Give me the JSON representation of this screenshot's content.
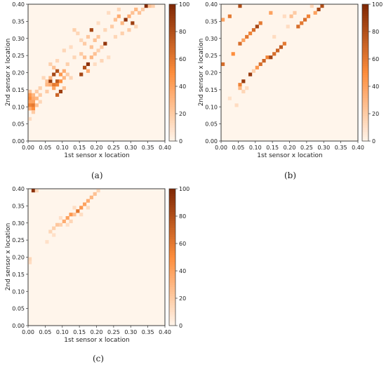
{
  "colormap": {
    "low": "#fff5eb",
    "mid": "#fd8d3c",
    "high": "#7f2704"
  },
  "chart_data": [
    {
      "type": "heatmap",
      "caption": "(a)",
      "xlabel": "1st sensor x location",
      "ylabel": "2nd sensor x location",
      "xlim": [
        0,
        0.4
      ],
      "ylim": [
        0,
        0.4
      ],
      "xticks": [
        "0.00",
        "0.05",
        "0.10",
        "0.15",
        "0.20",
        "0.25",
        "0.30",
        "0.35",
        "0.40"
      ],
      "yticks": [
        "0.00",
        "0.05",
        "0.10",
        "0.15",
        "0.20",
        "0.25",
        "0.30",
        "0.35",
        "0.40"
      ],
      "colorbar": {
        "min": 0,
        "max": 100,
        "ticks": [
          "0",
          "20",
          "40",
          "60",
          "80",
          "100"
        ]
      },
      "bin_size": 0.01,
      "cells": [
        {
          "x": 0.0,
          "y": 0.14,
          "v": 25
        },
        {
          "x": 0.0,
          "y": 0.13,
          "v": 45
        },
        {
          "x": 0.0,
          "y": 0.12,
          "v": 50
        },
        {
          "x": 0.0,
          "y": 0.11,
          "v": 40
        },
        {
          "x": 0.0,
          "y": 0.1,
          "v": 55
        },
        {
          "x": 0.0,
          "y": 0.09,
          "v": 35
        },
        {
          "x": 0.01,
          "y": 0.13,
          "v": 30
        },
        {
          "x": 0.01,
          "y": 0.12,
          "v": 35
        },
        {
          "x": 0.01,
          "y": 0.11,
          "v": 40
        },
        {
          "x": 0.01,
          "y": 0.1,
          "v": 60
        },
        {
          "x": 0.01,
          "y": 0.09,
          "v": 50
        },
        {
          "x": 0.01,
          "y": 0.08,
          "v": 20
        },
        {
          "x": 0.02,
          "y": 0.14,
          "v": 20
        },
        {
          "x": 0.02,
          "y": 0.12,
          "v": 30
        },
        {
          "x": 0.02,
          "y": 0.1,
          "v": 25
        },
        {
          "x": 0.03,
          "y": 0.13,
          "v": 20
        },
        {
          "x": 0.03,
          "y": 0.11,
          "v": 15
        },
        {
          "x": 0.0,
          "y": 0.06,
          "v": 12
        },
        {
          "x": 0.05,
          "y": 0.17,
          "v": 25
        },
        {
          "x": 0.05,
          "y": 0.16,
          "v": 30
        },
        {
          "x": 0.05,
          "y": 0.14,
          "v": 20
        },
        {
          "x": 0.06,
          "y": 0.17,
          "v": 90
        },
        {
          "x": 0.06,
          "y": 0.18,
          "v": 30
        },
        {
          "x": 0.06,
          "y": 0.16,
          "v": 35
        },
        {
          "x": 0.07,
          "y": 0.19,
          "v": 85
        },
        {
          "x": 0.07,
          "y": 0.16,
          "v": 60
        },
        {
          "x": 0.07,
          "y": 0.15,
          "v": 40
        },
        {
          "x": 0.08,
          "y": 0.2,
          "v": 80
        },
        {
          "x": 0.08,
          "y": 0.17,
          "v": 75
        },
        {
          "x": 0.08,
          "y": 0.16,
          "v": 55
        },
        {
          "x": 0.08,
          "y": 0.13,
          "v": 70
        },
        {
          "x": 0.09,
          "y": 0.19,
          "v": 45
        },
        {
          "x": 0.09,
          "y": 0.17,
          "v": 50
        },
        {
          "x": 0.09,
          "y": 0.14,
          "v": 88
        },
        {
          "x": 0.1,
          "y": 0.2,
          "v": 35
        },
        {
          "x": 0.1,
          "y": 0.18,
          "v": 30
        },
        {
          "x": 0.1,
          "y": 0.15,
          "v": 25
        },
        {
          "x": 0.11,
          "y": 0.19,
          "v": 20
        },
        {
          "x": 0.11,
          "y": 0.22,
          "v": 18
        },
        {
          "x": 0.07,
          "y": 0.21,
          "v": 25
        },
        {
          "x": 0.06,
          "y": 0.22,
          "v": 18
        },
        {
          "x": 0.08,
          "y": 0.23,
          "v": 15
        },
        {
          "x": 0.04,
          "y": 0.18,
          "v": 15
        },
        {
          "x": 0.03,
          "y": 0.15,
          "v": 18
        },
        {
          "x": 0.12,
          "y": 0.18,
          "v": 15
        },
        {
          "x": 0.1,
          "y": 0.26,
          "v": 15
        },
        {
          "x": 0.12,
          "y": 0.27,
          "v": 12
        },
        {
          "x": 0.13,
          "y": 0.24,
          "v": 15
        },
        {
          "x": 0.15,
          "y": 0.19,
          "v": 85
        },
        {
          "x": 0.16,
          "y": 0.21,
          "v": 80
        },
        {
          "x": 0.17,
          "y": 0.22,
          "v": 95
        },
        {
          "x": 0.17,
          "y": 0.2,
          "v": 35
        },
        {
          "x": 0.16,
          "y": 0.24,
          "v": 25
        },
        {
          "x": 0.15,
          "y": 0.25,
          "v": 20
        },
        {
          "x": 0.18,
          "y": 0.24,
          "v": 30
        },
        {
          "x": 0.19,
          "y": 0.25,
          "v": 25
        },
        {
          "x": 0.18,
          "y": 0.27,
          "v": 25
        },
        {
          "x": 0.16,
          "y": 0.28,
          "v": 20
        },
        {
          "x": 0.17,
          "y": 0.3,
          "v": 22
        },
        {
          "x": 0.18,
          "y": 0.32,
          "v": 85
        },
        {
          "x": 0.19,
          "y": 0.29,
          "v": 25
        },
        {
          "x": 0.2,
          "y": 0.3,
          "v": 22
        },
        {
          "x": 0.21,
          "y": 0.27,
          "v": 20
        },
        {
          "x": 0.22,
          "y": 0.28,
          "v": 92
        },
        {
          "x": 0.2,
          "y": 0.26,
          "v": 18
        },
        {
          "x": 0.14,
          "y": 0.31,
          "v": 15
        },
        {
          "x": 0.13,
          "y": 0.32,
          "v": 18
        },
        {
          "x": 0.15,
          "y": 0.29,
          "v": 15
        },
        {
          "x": 0.19,
          "y": 0.22,
          "v": 12
        },
        {
          "x": 0.21,
          "y": 0.23,
          "v": 15
        },
        {
          "x": 0.23,
          "y": 0.24,
          "v": 12
        },
        {
          "x": 0.22,
          "y": 0.32,
          "v": 15
        },
        {
          "x": 0.24,
          "y": 0.33,
          "v": 20
        },
        {
          "x": 0.25,
          "y": 0.35,
          "v": 25
        },
        {
          "x": 0.26,
          "y": 0.36,
          "v": 35
        },
        {
          "x": 0.27,
          "y": 0.34,
          "v": 30
        },
        {
          "x": 0.28,
          "y": 0.35,
          "v": 95
        },
        {
          "x": 0.29,
          "y": 0.36,
          "v": 35
        },
        {
          "x": 0.3,
          "y": 0.34,
          "v": 88
        },
        {
          "x": 0.3,
          "y": 0.37,
          "v": 25
        },
        {
          "x": 0.31,
          "y": 0.38,
          "v": 30
        },
        {
          "x": 0.32,
          "y": 0.37,
          "v": 25
        },
        {
          "x": 0.33,
          "y": 0.38,
          "v": 20
        },
        {
          "x": 0.34,
          "y": 0.39,
          "v": 98
        },
        {
          "x": 0.35,
          "y": 0.39,
          "v": 25
        },
        {
          "x": 0.36,
          "y": 0.39,
          "v": 18
        },
        {
          "x": 0.27,
          "y": 0.31,
          "v": 18
        },
        {
          "x": 0.25,
          "y": 0.3,
          "v": 15
        },
        {
          "x": 0.29,
          "y": 0.32,
          "v": 20
        },
        {
          "x": 0.31,
          "y": 0.33,
          "v": 15
        },
        {
          "x": 0.26,
          "y": 0.38,
          "v": 15
        },
        {
          "x": 0.23,
          "y": 0.37,
          "v": 12
        },
        {
          "x": 0.2,
          "y": 0.34,
          "v": 12
        }
      ]
    },
    {
      "type": "heatmap",
      "caption": "(b)",
      "xlabel": "1st sensor x location",
      "ylabel": "2nd sensor x location",
      "xlim": [
        0,
        0.4
      ],
      "ylim": [
        0,
        0.4
      ],
      "xticks": [
        "0.00",
        "0.05",
        "0.10",
        "0.15",
        "0.20",
        "0.25",
        "0.30",
        "0.35",
        "0.40"
      ],
      "yticks": [
        "0.00",
        "0.05",
        "0.10",
        "0.15",
        "0.20",
        "0.25",
        "0.30",
        "0.35",
        "0.40"
      ],
      "colorbar": {
        "min": 0,
        "max": 100,
        "ticks": [
          "0",
          "20",
          "40",
          "60",
          "80",
          "100"
        ]
      },
      "bin_size": 0.01,
      "cells": [
        {
          "x": 0.0,
          "y": 0.22,
          "v": 65
        },
        {
          "x": 0.0,
          "y": 0.35,
          "v": 40
        },
        {
          "x": 0.02,
          "y": 0.36,
          "v": 60
        },
        {
          "x": 0.03,
          "y": 0.25,
          "v": 50
        },
        {
          "x": 0.05,
          "y": 0.39,
          "v": 80
        },
        {
          "x": 0.05,
          "y": 0.28,
          "v": 65
        },
        {
          "x": 0.06,
          "y": 0.29,
          "v": 40
        },
        {
          "x": 0.06,
          "y": 0.17,
          "v": 90
        },
        {
          "x": 0.05,
          "y": 0.16,
          "v": 55
        },
        {
          "x": 0.05,
          "y": 0.15,
          "v": 30
        },
        {
          "x": 0.07,
          "y": 0.3,
          "v": 60
        },
        {
          "x": 0.08,
          "y": 0.31,
          "v": 55
        },
        {
          "x": 0.08,
          "y": 0.19,
          "v": 90
        },
        {
          "x": 0.09,
          "y": 0.32,
          "v": 65
        },
        {
          "x": 0.1,
          "y": 0.33,
          "v": 85
        },
        {
          "x": 0.1,
          "y": 0.21,
          "v": 45
        },
        {
          "x": 0.11,
          "y": 0.34,
          "v": 60
        },
        {
          "x": 0.11,
          "y": 0.22,
          "v": 65
        },
        {
          "x": 0.12,
          "y": 0.23,
          "v": 70
        },
        {
          "x": 0.13,
          "y": 0.24,
          "v": 55
        },
        {
          "x": 0.14,
          "y": 0.24,
          "v": 85
        },
        {
          "x": 0.14,
          "y": 0.37,
          "v": 40
        },
        {
          "x": 0.15,
          "y": 0.25,
          "v": 65
        },
        {
          "x": 0.16,
          "y": 0.26,
          "v": 70
        },
        {
          "x": 0.17,
          "y": 0.27,
          "v": 75
        },
        {
          "x": 0.18,
          "y": 0.28,
          "v": 60
        },
        {
          "x": 0.2,
          "y": 0.36,
          "v": 25
        },
        {
          "x": 0.21,
          "y": 0.37,
          "v": 20
        },
        {
          "x": 0.22,
          "y": 0.33,
          "v": 65
        },
        {
          "x": 0.23,
          "y": 0.34,
          "v": 60
        },
        {
          "x": 0.24,
          "y": 0.35,
          "v": 65
        },
        {
          "x": 0.25,
          "y": 0.36,
          "v": 55
        },
        {
          "x": 0.27,
          "y": 0.37,
          "v": 40
        },
        {
          "x": 0.28,
          "y": 0.38,
          "v": 85
        },
        {
          "x": 0.29,
          "y": 0.39,
          "v": 80
        },
        {
          "x": 0.04,
          "y": 0.1,
          "v": 12
        },
        {
          "x": 0.06,
          "y": 0.14,
          "v": 15
        },
        {
          "x": 0.07,
          "y": 0.15,
          "v": 12
        },
        {
          "x": 0.09,
          "y": 0.2,
          "v": 18
        },
        {
          "x": 0.02,
          "y": 0.12,
          "v": 10
        },
        {
          "x": 0.15,
          "y": 0.3,
          "v": 12
        },
        {
          "x": 0.19,
          "y": 0.33,
          "v": 12
        },
        {
          "x": 0.26,
          "y": 0.39,
          "v": 15
        },
        {
          "x": 0.18,
          "y": 0.36,
          "v": 12
        }
      ]
    },
    {
      "type": "heatmap",
      "caption": "(c)",
      "xlabel": "1st sensor x location",
      "ylabel": "2nd sensor x location",
      "xlim": [
        0,
        0.4
      ],
      "ylim": [
        0,
        0.4
      ],
      "xticks": [
        "0.00",
        "0.05",
        "0.10",
        "0.15",
        "0.20",
        "0.25",
        "0.30",
        "0.35",
        "0.40"
      ],
      "yticks": [
        "0.00",
        "0.05",
        "0.10",
        "0.15",
        "0.20",
        "0.25",
        "0.30",
        "0.35",
        "0.40"
      ],
      "colorbar": {
        "min": 0,
        "max": 100,
        "ticks": [
          "0",
          "20",
          "40",
          "60",
          "80",
          "100"
        ]
      },
      "bin_size": 0.01,
      "cells": [
        {
          "x": 0.01,
          "y": 0.39,
          "v": 95
        },
        {
          "x": 0.02,
          "y": 0.39,
          "v": 15
        },
        {
          "x": 0.0,
          "y": 0.19,
          "v": 15
        },
        {
          "x": 0.0,
          "y": 0.18,
          "v": 12
        },
        {
          "x": 0.06,
          "y": 0.27,
          "v": 15
        },
        {
          "x": 0.07,
          "y": 0.28,
          "v": 18
        },
        {
          "x": 0.08,
          "y": 0.29,
          "v": 22
        },
        {
          "x": 0.09,
          "y": 0.29,
          "v": 18
        },
        {
          "x": 0.1,
          "y": 0.3,
          "v": 35
        },
        {
          "x": 0.11,
          "y": 0.31,
          "v": 40
        },
        {
          "x": 0.12,
          "y": 0.32,
          "v": 45
        },
        {
          "x": 0.13,
          "y": 0.32,
          "v": 25
        },
        {
          "x": 0.14,
          "y": 0.33,
          "v": 60
        },
        {
          "x": 0.15,
          "y": 0.34,
          "v": 45
        },
        {
          "x": 0.16,
          "y": 0.35,
          "v": 40
        },
        {
          "x": 0.17,
          "y": 0.36,
          "v": 35
        },
        {
          "x": 0.18,
          "y": 0.37,
          "v": 30
        },
        {
          "x": 0.19,
          "y": 0.38,
          "v": 25
        },
        {
          "x": 0.2,
          "y": 0.39,
          "v": 15
        },
        {
          "x": 0.05,
          "y": 0.24,
          "v": 10
        },
        {
          "x": 0.07,
          "y": 0.26,
          "v": 10
        },
        {
          "x": 0.12,
          "y": 0.3,
          "v": 15
        },
        {
          "x": 0.15,
          "y": 0.32,
          "v": 12
        },
        {
          "x": 0.11,
          "y": 0.29,
          "v": 10
        },
        {
          "x": 0.17,
          "y": 0.34,
          "v": 12
        },
        {
          "x": 0.13,
          "y": 0.34,
          "v": 12
        },
        {
          "x": 0.09,
          "y": 0.31,
          "v": 10
        }
      ]
    }
  ]
}
